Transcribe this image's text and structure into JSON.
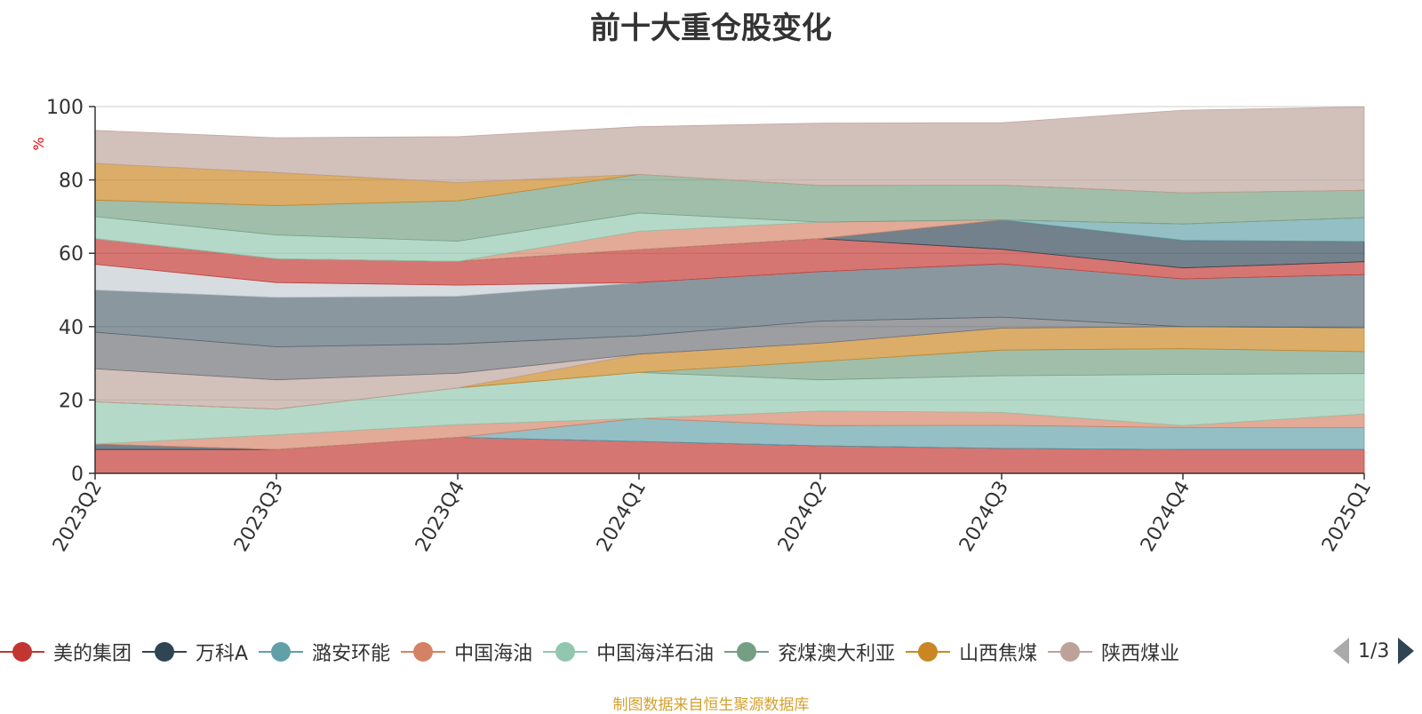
{
  "chart_data": {
    "type": "area",
    "stacked": true,
    "title": "前十大重仓股变化",
    "ylabel": "%",
    "ylim": [
      0,
      100
    ],
    "yticks": [
      0,
      20,
      40,
      60,
      80,
      100
    ],
    "grid": true,
    "categories": [
      "2023Q2",
      "2023Q3",
      "2023Q4",
      "2024Q1",
      "2024Q2",
      "2024Q3",
      "2024Q4",
      "2025Q1"
    ],
    "series": [
      {
        "name": "美的集团",
        "color": "#c23531",
        "values": [
          6.5,
          6.5,
          9.8,
          8.7,
          7.5,
          6.8,
          6.5,
          6.5
        ]
      },
      {
        "name": "万科A",
        "color": "#2f4554",
        "values": [
          1.5,
          0.0,
          0.0,
          0.0,
          0.0,
          0.0,
          0.0,
          0.0
        ]
      },
      {
        "name": "潞安环能",
        "color": "#61a0a8",
        "values": [
          0.0,
          0.0,
          0.0,
          6.3,
          5.5,
          6.3,
          6.0,
          6.0
        ]
      },
      {
        "name": "中国海油",
        "color": "#d48265",
        "values": [
          0.0,
          4.0,
          3.5,
          0.0,
          4.0,
          3.5,
          0.5,
          3.7
        ]
      },
      {
        "name": "中国海洋石油",
        "color": "#91c7ae",
        "values": [
          11.5,
          7.0,
          10.0,
          12.5,
          8.5,
          10.0,
          14.0,
          11.0
        ]
      },
      {
        "name": "兖煤澳大利亚",
        "color": "#749f83",
        "values": [
          0.0,
          0.0,
          0.0,
          0.0,
          5.0,
          7.0,
          7.0,
          6.0
        ]
      },
      {
        "name": "山西焦煤",
        "color": "#ca8622",
        "values": [
          0.0,
          0.0,
          0.0,
          5.0,
          5.0,
          6.0,
          6.0,
          6.5
        ]
      },
      {
        "name": "陕西煤业",
        "color": "#bda29a",
        "values": [
          9.0,
          8.0,
          4.0,
          0.0,
          0.0,
          0.0,
          0.0,
          0.0
        ]
      },
      {
        "name": "",
        "color": "#6e7074",
        "values": [
          10.0,
          9.0,
          8.0,
          5.0,
          6.0,
          3.0,
          0.0,
          0.0
        ]
      },
      {
        "name": "",
        "color": "#546570",
        "values": [
          11.5,
          13.5,
          13.0,
          14.5,
          13.5,
          14.5,
          13.0,
          14.5
        ]
      },
      {
        "name": "",
        "color": "#c4ccd3",
        "values": [
          7.0,
          4.0,
          3.0,
          0.0,
          0.0,
          0.0,
          0.0,
          0.0
        ]
      },
      {
        "name": "",
        "color": "#c23531",
        "values": [
          7.0,
          6.5,
          6.5,
          9.0,
          9.0,
          4.0,
          3.0,
          3.5
        ]
      },
      {
        "name": "",
        "color": "#2f4554",
        "values": [
          0.0,
          0.0,
          0.0,
          0.0,
          0.0,
          8.0,
          7.5,
          5.5
        ]
      },
      {
        "name": "",
        "color": "#61a0a8",
        "values": [
          0.0,
          0.0,
          0.0,
          0.0,
          0.0,
          0.0,
          4.5,
          6.5
        ]
      },
      {
        "name": "",
        "color": "#d48265",
        "values": [
          0.0,
          0.0,
          0.0,
          5.0,
          4.5,
          0.0,
          0.0,
          0.0
        ]
      },
      {
        "name": "",
        "color": "#91c7ae",
        "values": [
          6.0,
          6.5,
          5.5,
          5.0,
          0.0,
          0.0,
          0.0,
          0.0
        ]
      },
      {
        "name": "",
        "color": "#749f83",
        "values": [
          4.5,
          8.0,
          11.0,
          10.5,
          10.0,
          9.5,
          8.5,
          7.5
        ]
      },
      {
        "name": "",
        "color": "#ca8622",
        "values": [
          10.0,
          9.0,
          5.0,
          0.0,
          0.0,
          0.0,
          0.0,
          0.0
        ]
      },
      {
        "name": "",
        "color": "#bda29a",
        "values": [
          9.0,
          9.5,
          12.5,
          13.0,
          17.0,
          17.0,
          22.5,
          22.7
        ]
      }
    ]
  },
  "legend": {
    "items": [
      {
        "label": "美的集团",
        "color": "#c23531"
      },
      {
        "label": "万科A",
        "color": "#2f4554"
      },
      {
        "label": "潞安环能",
        "color": "#61a0a8"
      },
      {
        "label": "中国海油",
        "color": "#d48265"
      },
      {
        "label": "中国海洋石油",
        "color": "#91c7ae"
      },
      {
        "label": "兖煤澳大利亚",
        "color": "#749f83"
      },
      {
        "label": "山西焦煤",
        "color": "#ca8622"
      },
      {
        "label": "陕西煤业",
        "color": "#bda29a"
      }
    ],
    "page": "1/3"
  },
  "footer": {
    "source": "制图数据来自恒生聚源数据库"
  }
}
